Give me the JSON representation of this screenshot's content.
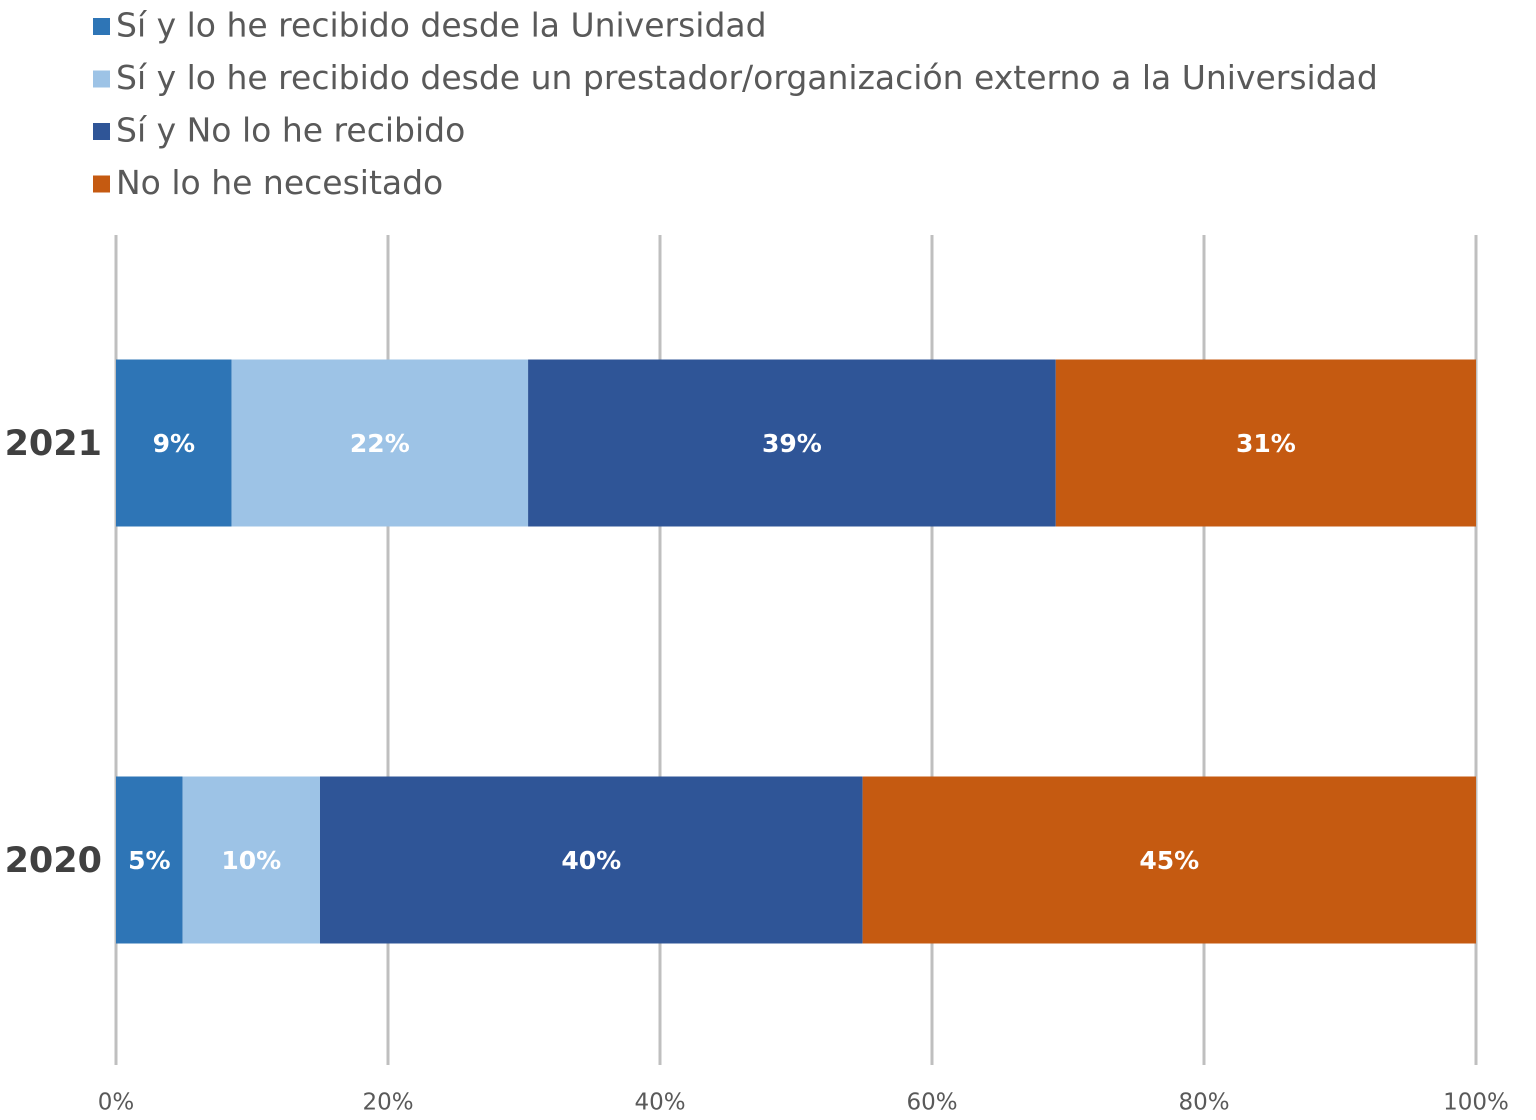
{
  "chart_data": {
    "type": "stacked_bar_horizontal",
    "categories": [
      "2021",
      "2020"
    ],
    "series": [
      {
        "name": "Sí y lo he recibido desde la Universidad",
        "color": "#2e75b6",
        "values": [
          8.5,
          4.9
        ],
        "value_labels": [
          "9%",
          "5%"
        ]
      },
      {
        "name": "Sí y lo he recibido desde un prestador/organización externo a la Universidad",
        "color": "#9dc3e6",
        "values": [
          21.8,
          10.1
        ],
        "value_labels": [
          "22%",
          "10%"
        ]
      },
      {
        "name": "Sí y No lo he recibido",
        "color": "#2f5597",
        "values": [
          38.8,
          39.9
        ],
        "value_labels": [
          "39%",
          "40%"
        ]
      },
      {
        "name": "No lo he necesitado",
        "color": "#c55a11",
        "values": [
          30.9,
          45.1
        ],
        "value_labels": [
          "31%",
          "45%"
        ]
      }
    ],
    "xlim": [
      0,
      100
    ],
    "xticks": [
      {
        "value": 0,
        "label": "0%"
      },
      {
        "value": 20,
        "label": "20%"
      },
      {
        "value": 40,
        "label": "40%"
      },
      {
        "value": 60,
        "label": "60%"
      },
      {
        "value": 80,
        "label": "80%"
      },
      {
        "value": 100,
        "label": "100%"
      }
    ],
    "grid": true,
    "legend": "top-left"
  }
}
